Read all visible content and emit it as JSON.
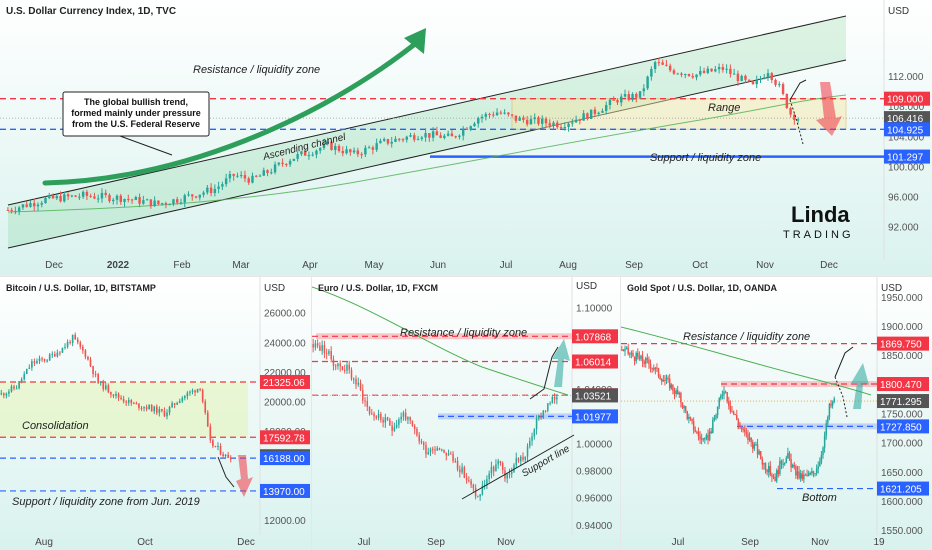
{
  "colors": {
    "bull": "#26a69a",
    "bear": "#ef5350",
    "resistance": "#f23645",
    "support": "#2962ff",
    "price_tag": "#555555",
    "ma": "#4caf50",
    "bg_top": "#ffffff",
    "bg_bottom": "#d9f2ee"
  },
  "chart_data": [
    {
      "type": "candlestick",
      "title": "U.S. Dollar Currency Index, 1D, TVC",
      "currency": "USD",
      "y_ticks": [
        "112.000",
        "108.000",
        "104.000",
        "100.000",
        "96.000",
        "92.000"
      ],
      "y_tick_values": [
        112,
        108,
        104,
        100,
        96,
        92
      ],
      "ylim": [
        89,
        120
      ],
      "x_ticks": [
        "Dec",
        "2022",
        "Feb",
        "Mar",
        "Apr",
        "May",
        "Jun",
        "Jul",
        "Aug",
        "Sep",
        "Oct",
        "Nov",
        "Dec"
      ],
      "price_tags": [
        {
          "label": "109.000",
          "value": 109.0,
          "kind": "resistance"
        },
        {
          "label": "106.416",
          "value": 106.416,
          "kind": "price"
        },
        {
          "label": "104.925",
          "value": 104.925,
          "kind": "support"
        },
        {
          "label": "101.297",
          "value": 101.297,
          "kind": "support"
        }
      ],
      "annotations": {
        "resistance": "Resistance / liquidity zone",
        "support": "Support / liquidity zone",
        "range": "Range",
        "channel": "Ascending channel",
        "callout": "The global bullish trend,\nformed mainly under pressure\nfrom the U.S. Federal Reserve"
      },
      "path": [
        [
          0,
          94.2
        ],
        [
          10,
          95.6
        ],
        [
          20,
          96.1
        ],
        [
          30,
          95.8
        ],
        [
          40,
          95.0
        ],
        [
          45,
          95.6
        ],
        [
          55,
          97.0
        ],
        [
          60,
          98.8
        ],
        [
          65,
          98.2
        ],
        [
          70,
          99.5
        ],
        [
          75,
          101.0
        ],
        [
          85,
          102.8
        ],
        [
          92,
          101.6
        ],
        [
          100,
          103.2
        ],
        [
          110,
          104.3
        ],
        [
          118,
          103.8
        ],
        [
          125,
          106.5
        ],
        [
          130,
          107.2
        ],
        [
          135,
          106.3
        ],
        [
          140,
          106.0
        ],
        [
          147,
          105.6
        ],
        [
          155,
          107.0
        ],
        [
          162,
          108.9
        ],
        [
          168,
          109.5
        ],
        [
          172,
          113.8
        ],
        [
          176,
          112.8
        ],
        [
          183,
          112.2
        ],
        [
          190,
          113.0
        ],
        [
          198,
          110.6
        ],
        [
          202,
          112.8
        ],
        [
          205,
          110.5
        ],
        [
          208,
          107.0
        ],
        [
          210,
          106.4
        ]
      ]
    },
    {
      "type": "candlestick",
      "title": "Bitcoin / U.S. Dollar, 1D, BITSTAMP",
      "currency": "USD",
      "y_ticks": [
        "26000.00",
        "24000.00",
        "22000.00",
        "20000.00",
        "18000.00",
        "14000.00",
        "12000.00"
      ],
      "y_tick_values": [
        26000,
        24000,
        22000,
        20000,
        18000,
        14000,
        12000
      ],
      "ylim": [
        11200,
        27600
      ],
      "x_ticks": [
        "Aug",
        "Oct",
        "Dec"
      ],
      "price_tags": [
        {
          "label": "21325.06",
          "value": 21325.06,
          "kind": "resistance"
        },
        {
          "label": "17592.78",
          "value": 17592.78,
          "kind": "resistance"
        },
        {
          "label": "16314.00",
          "value": 16314.0,
          "kind": "price"
        },
        {
          "label": "16188.00",
          "value": 16188.0,
          "kind": "support"
        },
        {
          "label": "13970.00",
          "value": 13970.0,
          "kind": "support"
        }
      ],
      "annotations": {
        "consolidation": "Consolidation",
        "support": "Support / liquidity zone  from Jun. 2019"
      },
      "path": [
        [
          0,
          20500
        ],
        [
          6,
          21000
        ],
        [
          12,
          22600
        ],
        [
          18,
          22900
        ],
        [
          24,
          23600
        ],
        [
          28,
          24300
        ],
        [
          33,
          23200
        ],
        [
          38,
          21300
        ],
        [
          45,
          20400
        ],
        [
          52,
          19800
        ],
        [
          58,
          19600
        ],
        [
          64,
          19200
        ],
        [
          70,
          20200
        ],
        [
          75,
          20700
        ],
        [
          78,
          21000
        ],
        [
          82,
          17200
        ],
        [
          85,
          16800
        ],
        [
          88,
          16300
        ],
        [
          90,
          16314
        ]
      ]
    },
    {
      "type": "candlestick",
      "title": "Euro / U.S. Dollar, 1D, FXCM",
      "currency": "USD",
      "y_ticks": [
        "1.10000",
        "1.08000",
        "1.06000",
        "1.04000",
        "1.02000",
        "1.00000",
        "0.98000",
        "0.96000",
        "0.94000"
      ],
      "y_tick_values": [
        1.1,
        1.08,
        1.06,
        1.04,
        1.02,
        1.0,
        0.98,
        0.96,
        0.94
      ],
      "ylim": [
        0.934,
        1.112
      ],
      "x_ticks": [
        "Jul",
        "Sep",
        "Nov"
      ],
      "price_tags": [
        {
          "label": "1.07868",
          "value": 1.07868,
          "kind": "resistance"
        },
        {
          "label": "1.06014",
          "value": 1.06014,
          "kind": "resistance"
        },
        {
          "label": "1.03536",
          "value": 1.03536,
          "kind": "resistance"
        },
        {
          "label": "1.03521",
          "value": 1.03521,
          "kind": "price"
        },
        {
          "label": "1.01977",
          "value": 1.01977,
          "kind": "support"
        }
      ],
      "annotations": {
        "resistance": "Resistance / liquidity zone",
        "support_line": "Support line"
      },
      "path": [
        [
          0,
          1.073
        ],
        [
          5,
          1.069
        ],
        [
          10,
          1.058
        ],
        [
          15,
          1.055
        ],
        [
          20,
          1.042
        ],
        [
          25,
          1.023
        ],
        [
          30,
          1.018
        ],
        [
          35,
          1.012
        ],
        [
          40,
          1.022
        ],
        [
          45,
          1.008
        ],
        [
          50,
          0.995
        ],
        [
          55,
          0.998
        ],
        [
          60,
          0.992
        ],
        [
          65,
          0.982
        ],
        [
          70,
          0.968
        ],
        [
          73,
          0.96
        ],
        [
          78,
          0.978
        ],
        [
          82,
          0.985
        ],
        [
          86,
          0.974
        ],
        [
          90,
          0.988
        ],
        [
          94,
          0.99
        ],
        [
          98,
          1.012
        ],
        [
          102,
          1.024
        ],
        [
          106,
          1.031
        ],
        [
          108,
          1.0352
        ]
      ]
    },
    {
      "type": "candlestick",
      "title": "Gold Spot / U.S. Dollar, 1D, OANDA",
      "currency": "USD",
      "y_ticks": [
        "1950.000",
        "1900.000",
        "1850.000",
        "1800.000",
        "1750.000",
        "1700.000",
        "1650.000",
        "1600.000",
        "1550.000"
      ],
      "y_tick_values": [
        1950,
        1900,
        1850,
        1800,
        1750,
        1700,
        1650,
        1600,
        1550
      ],
      "ylim": [
        1545,
        1960
      ],
      "x_ticks": [
        "Jul",
        "Sep",
        "Nov",
        "19"
      ],
      "price_tags": [
        {
          "label": "1869.750",
          "value": 1869.75,
          "kind": "resistance"
        },
        {
          "label": "1800.470",
          "value": 1800.47,
          "kind": "resistance"
        },
        {
          "label": "1771.295",
          "value": 1771.295,
          "kind": "price"
        },
        {
          "label": "1727.850",
          "value": 1727.85,
          "kind": "support"
        },
        {
          "label": "1621.205",
          "value": 1621.205,
          "kind": "support"
        }
      ],
      "annotations": {
        "resistance": "Resistance / liquidity zone",
        "bottom": "Bottom"
      },
      "path": [
        [
          0,
          1860
        ],
        [
          6,
          1850
        ],
        [
          12,
          1842
        ],
        [
          18,
          1835
        ],
        [
          24,
          1815
        ],
        [
          30,
          1800
        ],
        [
          36,
          1778
        ],
        [
          42,
          1740
        ],
        [
          48,
          1712
        ],
        [
          52,
          1700
        ],
        [
          56,
          1722
        ],
        [
          60,
          1760
        ],
        [
          64,
          1795
        ],
        [
          68,
          1760
        ],
        [
          72,
          1740
        ],
        [
          76,
          1718
        ],
        [
          80,
          1705
        ],
        [
          84,
          1690
        ],
        [
          88,
          1668
        ],
        [
          92,
          1652
        ],
        [
          96,
          1640
        ],
        [
          100,
          1668
        ],
        [
          104,
          1675
        ],
        [
          108,
          1652
        ],
        [
          112,
          1640
        ],
        [
          116,
          1642
        ],
        [
          120,
          1648
        ],
        [
          124,
          1670
        ],
        [
          127,
          1712
        ],
        [
          130,
          1760
        ],
        [
          133,
          1771
        ]
      ]
    }
  ],
  "logo": {
    "text_top": "Linda",
    "text_bottom": "TRADING"
  }
}
